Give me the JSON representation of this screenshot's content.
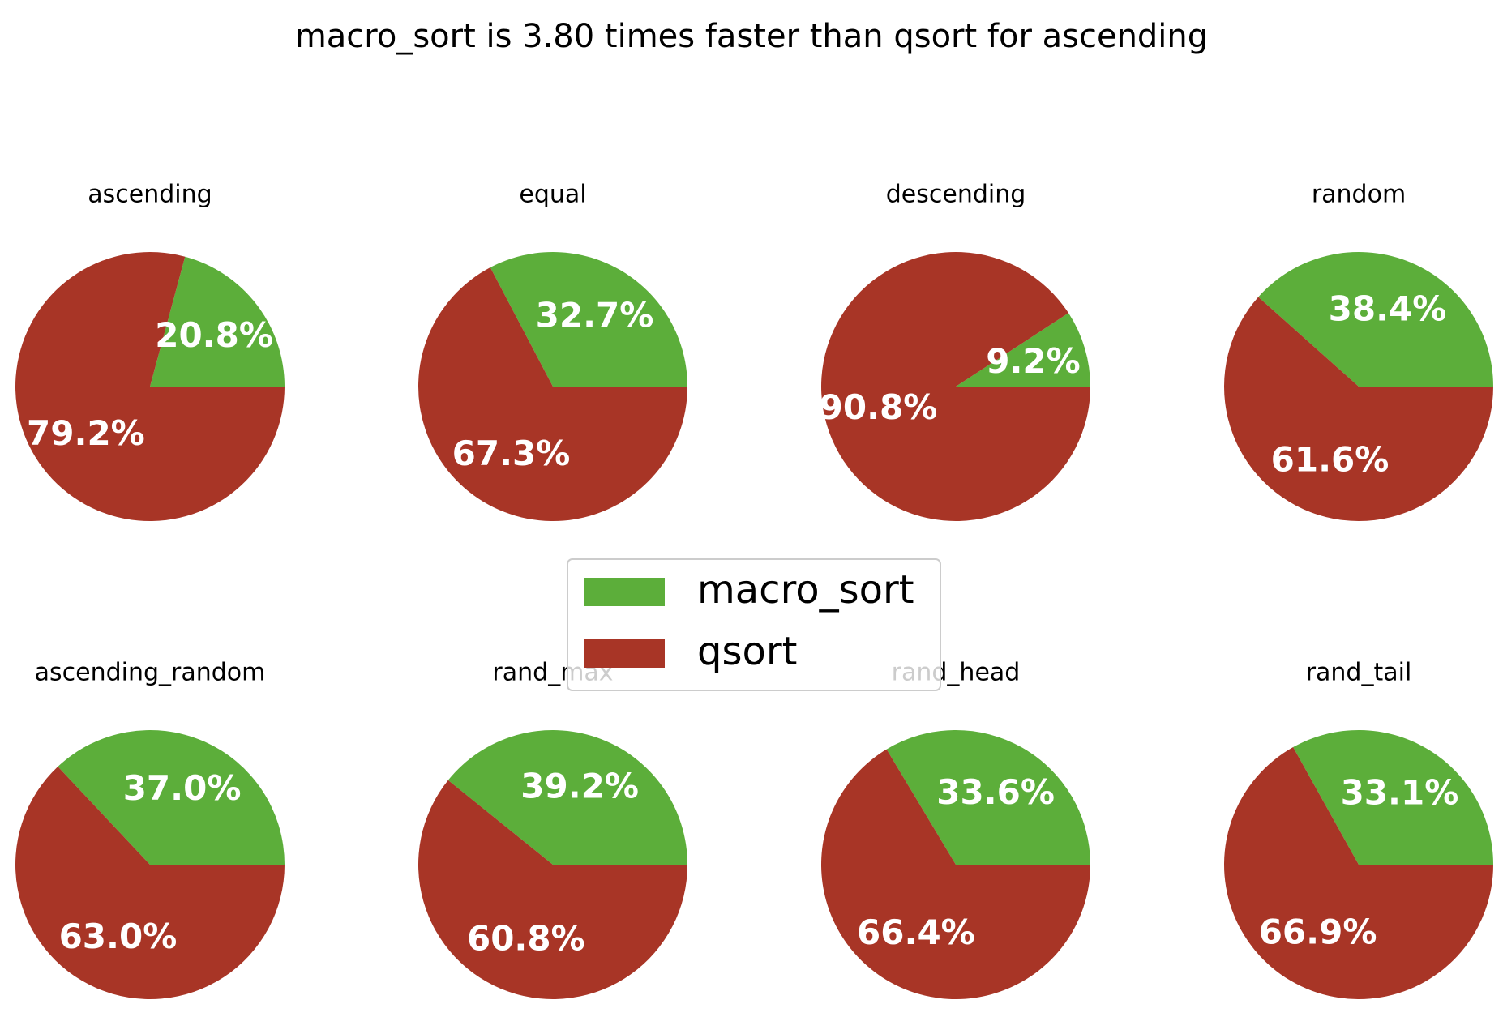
{
  "chart_data": {
    "type": "pie",
    "title": "macro_sort is 3.80 times faster than qsort for ascending",
    "legend": {
      "placement": "center",
      "entries": [
        {
          "name": "macro_sort",
          "color": "#5cae3a"
        },
        {
          "name": "qsort",
          "color": "#a83526"
        }
      ]
    },
    "pies": [
      {
        "title": "ascending",
        "values": [
          20.8,
          79.2
        ],
        "labels": [
          "20.8%",
          "79.2%"
        ]
      },
      {
        "title": "equal",
        "values": [
          32.7,
          67.3
        ],
        "labels": [
          "32.7%",
          "67.3%"
        ]
      },
      {
        "title": "descending",
        "values": [
          9.2,
          90.8
        ],
        "labels": [
          "9.2%",
          "90.8%"
        ]
      },
      {
        "title": "random",
        "values": [
          38.4,
          61.6
        ],
        "labels": [
          "38.4%",
          "61.6%"
        ]
      },
      {
        "title": "ascending_random",
        "values": [
          37.0,
          63.0
        ],
        "labels": [
          "37.0%",
          "63.0%"
        ]
      },
      {
        "title": "rand_max",
        "values": [
          39.2,
          60.8
        ],
        "labels": [
          "39.2%",
          "60.8%"
        ]
      },
      {
        "title": "rand_head",
        "values": [
          33.6,
          66.4
        ],
        "labels": [
          "33.6%",
          "66.4%"
        ]
      },
      {
        "title": "rand_tail",
        "values": [
          33.1,
          66.9
        ],
        "labels": [
          "33.1%",
          "66.9%"
        ]
      }
    ]
  }
}
